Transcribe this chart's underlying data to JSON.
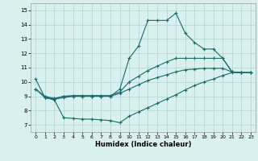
{
  "xlabel": "Humidex (Indice chaleur)",
  "xlim": [
    -0.5,
    23.5
  ],
  "ylim": [
    6.5,
    15.5
  ],
  "xticks": [
    0,
    1,
    2,
    3,
    4,
    5,
    6,
    7,
    8,
    9,
    10,
    11,
    12,
    13,
    14,
    15,
    16,
    17,
    18,
    19,
    20,
    21,
    22,
    23
  ],
  "yticks": [
    7,
    8,
    9,
    10,
    11,
    12,
    13,
    14,
    15
  ],
  "bg_color": "#d8f0ee",
  "grid_color": "#b0d4d0",
  "line_color": "#1a6b6b",
  "line1_x": [
    0,
    1,
    2,
    3,
    4,
    5,
    6,
    7,
    8,
    9,
    10,
    11,
    12,
    13,
    14,
    15,
    16,
    17,
    18,
    19,
    20,
    21,
    22,
    23
  ],
  "line1_y": [
    10.2,
    8.9,
    8.8,
    9.0,
    9.0,
    9.0,
    9.0,
    9.0,
    9.0,
    9.5,
    11.65,
    12.5,
    14.3,
    14.3,
    14.3,
    14.8,
    13.4,
    12.75,
    12.3,
    12.3,
    11.65,
    10.7,
    10.65,
    10.65
  ],
  "line2_x": [
    0,
    1,
    2,
    3,
    4,
    5,
    6,
    7,
    8,
    9,
    10,
    11,
    12,
    13,
    14,
    15,
    16,
    17,
    18,
    19,
    20,
    21,
    22,
    23
  ],
  "line2_y": [
    9.5,
    9.0,
    8.85,
    9.0,
    9.05,
    9.05,
    9.05,
    9.05,
    9.05,
    9.3,
    10.0,
    10.4,
    10.8,
    11.1,
    11.4,
    11.65,
    11.65,
    11.65,
    11.65,
    11.65,
    11.65,
    10.7,
    10.65,
    10.65
  ],
  "line3_x": [
    1,
    2,
    3,
    4,
    5,
    6,
    7,
    8,
    9,
    10,
    11,
    12,
    13,
    14,
    15,
    16,
    17,
    18,
    19,
    20,
    21,
    22,
    23
  ],
  "line3_y": [
    8.9,
    8.75,
    7.5,
    7.45,
    7.4,
    7.4,
    7.35,
    7.3,
    7.15,
    7.6,
    7.9,
    8.2,
    8.5,
    8.8,
    9.1,
    9.45,
    9.75,
    10.0,
    10.2,
    10.45,
    10.65,
    10.65,
    10.65
  ],
  "line4_x": [
    0,
    1,
    2,
    3,
    4,
    5,
    6,
    7,
    8,
    9,
    10,
    11,
    12,
    13,
    14,
    15,
    16,
    17,
    18,
    19,
    20,
    21,
    22,
    23
  ],
  "line4_y": [
    9.5,
    8.9,
    8.8,
    8.9,
    9.0,
    9.0,
    9.0,
    9.0,
    9.0,
    9.2,
    9.5,
    9.8,
    10.1,
    10.3,
    10.5,
    10.7,
    10.85,
    10.9,
    10.95,
    10.95,
    10.95,
    10.7,
    10.65,
    10.65
  ]
}
